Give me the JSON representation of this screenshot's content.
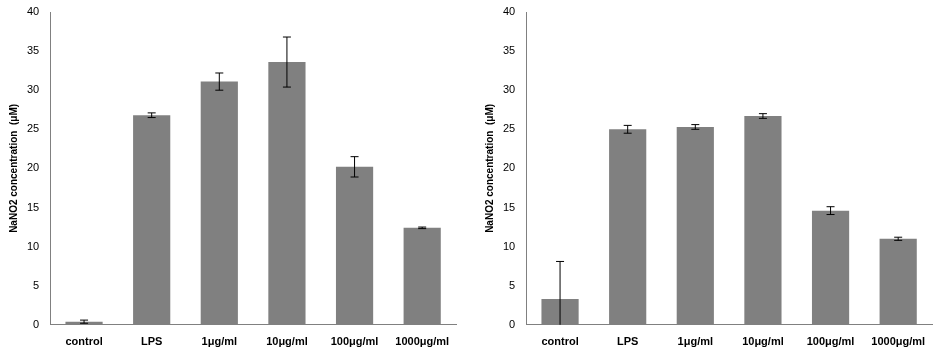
{
  "chart_data": [
    {
      "type": "bar",
      "ylabel": "NaNO2 concentration  (μM)",
      "categories": [
        "control",
        "LPS",
        "1μg/ml",
        "10μg/ml",
        "100μg/ml",
        "1000μg/ml"
      ],
      "values": [
        0.4,
        26.8,
        31.1,
        33.6,
        20.2,
        12.4
      ],
      "errors": [
        0.2,
        0.3,
        1.1,
        3.2,
        1.3,
        0.1
      ],
      "color": "#808080",
      "ylim": [
        0,
        40
      ],
      "yticks": [
        0,
        5,
        10,
        15,
        20,
        25,
        30,
        35,
        40
      ],
      "grid": false
    },
    {
      "type": "bar",
      "ylabel": "NaNO2 concentration  (μM)",
      "categories": [
        "control",
        "LPS",
        "1μg/ml",
        "10μg/ml",
        "100μg/ml",
        "1000μg/ml"
      ],
      "values": [
        3.3,
        25.0,
        25.3,
        26.7,
        14.6,
        11.0
      ],
      "errors": [
        4.8,
        0.5,
        0.3,
        0.3,
        0.5,
        0.2
      ],
      "color": "#808080",
      "ylim": [
        0,
        40
      ],
      "yticks": [
        0,
        5,
        10,
        15,
        20,
        25,
        30,
        35,
        40
      ],
      "grid": false
    }
  ]
}
